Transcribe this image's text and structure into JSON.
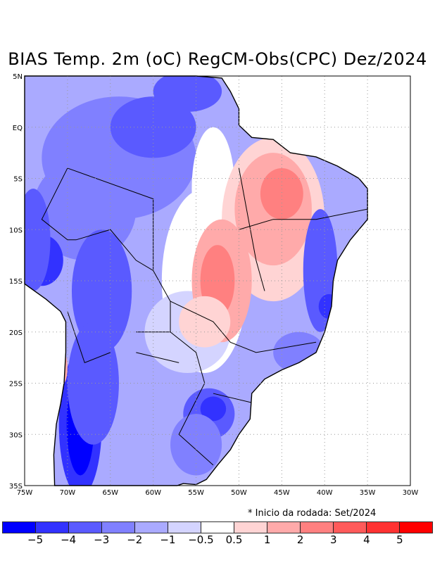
{
  "title": "BIAS Temp. 2m (oC) RegCM-Obs(CPC) Dez/2024",
  "note": "* Inicio da rodada: Set/2024",
  "lon_ticks": [
    "75W",
    "70W",
    "65W",
    "60W",
    "55W",
    "50W",
    "45W",
    "40W",
    "35W",
    "30W"
  ],
  "lat_ticks": [
    "5N",
    "EQ",
    "5S",
    "10S",
    "15S",
    "20S",
    "25S",
    "30S",
    "35S"
  ],
  "colorbar": {
    "colors": [
      "#0000ff",
      "#3232ff",
      "#5a5aff",
      "#8080ff",
      "#aaaaff",
      "#d4d4ff",
      "#ffffff",
      "#ffd4d4",
      "#ffaaaa",
      "#ff8080",
      "#ff5a5a",
      "#ff3232",
      "#ff0000"
    ],
    "labels": [
      "−5",
      "−4",
      "−3",
      "−2",
      "−1",
      "−0.5",
      "0.5",
      "1",
      "2",
      "3",
      "4",
      "5"
    ]
  }
}
